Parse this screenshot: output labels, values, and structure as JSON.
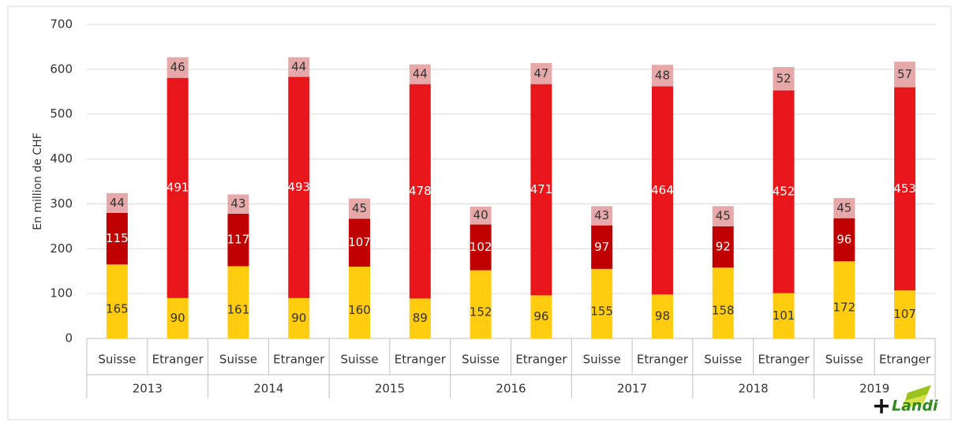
{
  "chart_data": {
    "type": "stacked_bar",
    "y_label": "En million de CHF",
    "categories": [
      "Suisse",
      "Etranger",
      "Suisse",
      "Etranger",
      "Suisse",
      "Etranger",
      "Suisse",
      "Etranger",
      "Suisse",
      "Etranger",
      "Suisse",
      "Etranger",
      "Suisse",
      "Etranger"
    ],
    "groups": [
      "2013",
      "2014",
      "2015",
      "2016",
      "2017",
      "2018",
      "2019"
    ],
    "series": [
      {
        "color": "#ffcc10",
        "label_color": "#333333",
        "values": [
          165,
          90,
          161,
          90,
          160,
          89,
          152,
          96,
          155,
          98,
          158,
          101,
          172,
          107
        ]
      },
      {
        "colors": [
          "#c00000",
          "#e8161b",
          "#c00000",
          "#e8161b",
          "#c00000",
          "#e8161b",
          "#c00000",
          "#e8161b",
          "#c00000",
          "#e8161b",
          "#c00000",
          "#e8161b",
          "#c00000",
          "#e8161b"
        ],
        "label_color": "#ffffff",
        "values": [
          115,
          491,
          117,
          493,
          107,
          478,
          102,
          471,
          97,
          464,
          92,
          452,
          96,
          453
        ]
      },
      {
        "color": "#e6a8a8",
        "label_color": "#333333",
        "values": [
          44,
          46,
          43,
          44,
          45,
          44,
          40,
          47,
          43,
          48,
          45,
          52,
          45,
          57
        ]
      }
    ],
    "ylim": [
      0,
      700
    ],
    "yticks": [
      0,
      100,
      200,
      300,
      400,
      500,
      600,
      700
    ],
    "grid": true,
    "logo": "Landi"
  }
}
